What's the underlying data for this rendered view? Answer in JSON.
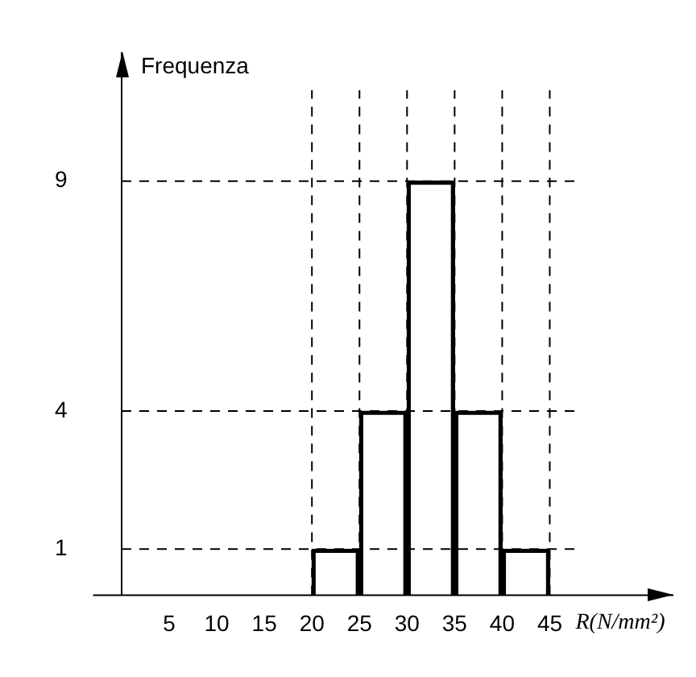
{
  "chart_data": {
    "type": "bar",
    "xlabel": "R(N/mm²)",
    "ylabel": "Frequenza",
    "x": [
      22.5,
      27.5,
      32.5,
      37.5,
      42.5
    ],
    "values": [
      1,
      4,
      9,
      4,
      1
    ],
    "color": "#000000",
    "xlim": [
      -3,
      58
    ],
    "ylim": [
      0,
      11.8
    ],
    "xticks": [
      5,
      10,
      15,
      20,
      25,
      30,
      35,
      40,
      45
    ],
    "yticks": [
      1,
      4,
      9
    ],
    "grid": false,
    "legend": false,
    "ref_lines": [
      {
        "axis": "x",
        "value": 20,
        "line_style": "dashed",
        "color": "#000000"
      },
      {
        "axis": "x",
        "value": 25,
        "line_style": "dashed",
        "color": "#000000"
      },
      {
        "axis": "x",
        "value": 30,
        "line_style": "dashed",
        "color": "#000000"
      },
      {
        "axis": "x",
        "value": 35,
        "line_style": "dashed",
        "color": "#000000"
      },
      {
        "axis": "x",
        "value": 40,
        "line_style": "dashed",
        "color": "#000000"
      },
      {
        "axis": "x",
        "value": 45,
        "line_style": "dashed",
        "color": "#000000"
      },
      {
        "axis": "y",
        "value": 1,
        "line_style": "dashed",
        "color": "#000000"
      },
      {
        "axis": "y",
        "value": 4,
        "line_style": "dashed",
        "color": "#000000"
      },
      {
        "axis": "y",
        "value": 9,
        "line_style": "dashed",
        "color": "#000000"
      }
    ]
  }
}
